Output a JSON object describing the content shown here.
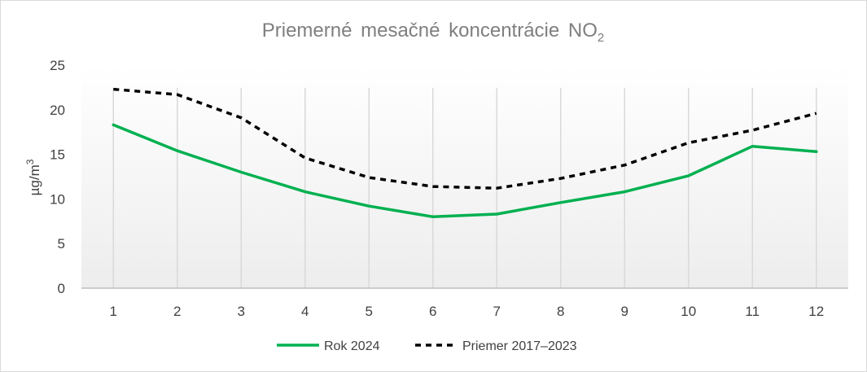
{
  "chart_data": {
    "type": "line",
    "title": "Priemerné mesačné koncentrácie NO",
    "title_subscript": "2",
    "ylabel": "µg/m",
    "ylabel_superscript": "3",
    "xlabel": "",
    "ylim": [
      0,
      25
    ],
    "ytick_step": 5,
    "grid": "vertical",
    "legend_position": "bottom",
    "categories": [
      "1",
      "2",
      "3",
      "4",
      "5",
      "6",
      "7",
      "8",
      "9",
      "10",
      "11",
      "12"
    ],
    "series": [
      {
        "name": "Rok 2024",
        "color": "#00b050",
        "style": "solid",
        "values": [
          18.3,
          15.4,
          13.0,
          10.8,
          9.2,
          8.0,
          8.3,
          9.6,
          10.8,
          12.6,
          15.9,
          15.3
        ]
      },
      {
        "name": "Priemer 2017–2023",
        "color": "#000000",
        "style": "dashed",
        "values": [
          22.3,
          21.7,
          19.1,
          14.6,
          12.4,
          11.4,
          11.2,
          12.3,
          13.8,
          16.3,
          17.7,
          19.6
        ]
      }
    ]
  }
}
